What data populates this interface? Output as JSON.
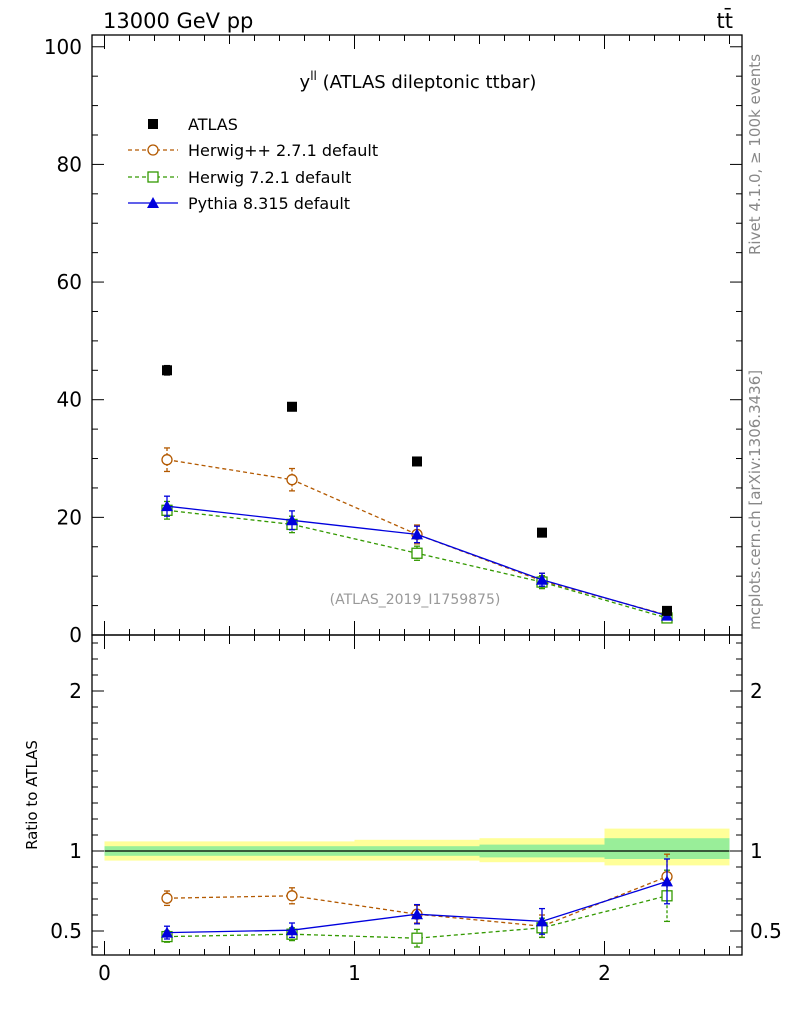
{
  "header": {
    "energy_label": "13000 GeV pp",
    "process_label": "tt̄"
  },
  "side_labels": {
    "rivet": "Rivet 4.1.0, ≥ 100k events",
    "mcplots": "mcplots.cern.ch [arXiv:1306.3436]"
  },
  "chart_data": {
    "type": "scatter",
    "title": "y^ll (ATLAS dileptonic ttbar)",
    "title_main": "y",
    "title_sup": "ll",
    "title_rest": " (ATLAS dileptonic ttbar)",
    "analysis_id": "(ATLAS_2019_I1759875)",
    "x": [
      0.25,
      0.75,
      1.25,
      1.75,
      2.25
    ],
    "bin_edges": [
      0,
      0.5,
      1.0,
      1.5,
      2.0,
      2.5
    ],
    "xlim": [
      -0.05,
      2.55
    ],
    "xticks": [
      "0",
      "1",
      "2"
    ],
    "main_panel": {
      "ylim": [
        0,
        102
      ],
      "yticks": [
        "0",
        "20",
        "40",
        "60",
        "80",
        "100"
      ],
      "series": [
        {
          "name": "ATLAS",
          "key": "atlas",
          "color": "#000000",
          "marker": "filled-square",
          "line": "none",
          "values": [
            45.0,
            38.8,
            29.5,
            17.4,
            4.1
          ],
          "errors": [
            0.8,
            0.7,
            0.6,
            0.4,
            0.2
          ]
        },
        {
          "name": "Herwig++ 2.7.1 default",
          "key": "hwpp",
          "color": "#b35900",
          "marker": "open-circle",
          "line": "dashed",
          "values": [
            29.8,
            26.4,
            17.1,
            9.2,
            3.4
          ],
          "errors": [
            2.0,
            1.9,
            1.6,
            1.3,
            0.6
          ]
        },
        {
          "name": "Herwig 7.2.1 default",
          "key": "hw7",
          "color": "#339900",
          "marker": "open-square",
          "line": "dashed",
          "values": [
            21.2,
            18.8,
            13.9,
            9.0,
            2.9
          ],
          "errors": [
            1.5,
            1.4,
            1.2,
            1.1,
            0.6
          ]
        },
        {
          "name": "Pythia 8.315 default",
          "key": "py8",
          "color": "#0000dd",
          "marker": "filled-triangle",
          "line": "solid",
          "values": [
            21.9,
            19.5,
            17.1,
            9.4,
            3.3
          ],
          "errors": [
            1.7,
            1.6,
            1.4,
            1.1,
            0.6
          ]
        }
      ]
    },
    "ratio_panel": {
      "ylabel": "Ratio to ATLAS",
      "ylim": [
        0.35,
        2.35
      ],
      "yticks": [
        "0.5",
        "1",
        "2"
      ],
      "band_yellow": [
        [
          0.94,
          1.06
        ],
        [
          0.94,
          1.06
        ],
        [
          0.94,
          1.07
        ],
        [
          0.93,
          1.08
        ],
        [
          0.91,
          1.14
        ]
      ],
      "band_green": [
        [
          0.97,
          1.03
        ],
        [
          0.97,
          1.03
        ],
        [
          0.97,
          1.03
        ],
        [
          0.96,
          1.04
        ],
        [
          0.95,
          1.08
        ]
      ],
      "series": [
        {
          "key": "hwpp",
          "color": "#b35900",
          "marker": "open-circle",
          "line": "dashed",
          "values": [
            0.705,
            0.72,
            0.605,
            0.53,
            0.84
          ],
          "errors": [
            0.045,
            0.05,
            0.055,
            0.07,
            0.14
          ]
        },
        {
          "key": "hw7",
          "color": "#339900",
          "marker": "open-square",
          "line": "dashed",
          "values": [
            0.465,
            0.48,
            0.455,
            0.52,
            0.72
          ],
          "errors": [
            0.035,
            0.04,
            0.055,
            0.06,
            0.16
          ]
        },
        {
          "key": "py8",
          "color": "#0000dd",
          "marker": "filled-triangle",
          "line": "solid",
          "values": [
            0.49,
            0.505,
            0.605,
            0.56,
            0.81
          ],
          "errors": [
            0.04,
            0.045,
            0.06,
            0.08,
            0.14
          ]
        }
      ]
    }
  }
}
